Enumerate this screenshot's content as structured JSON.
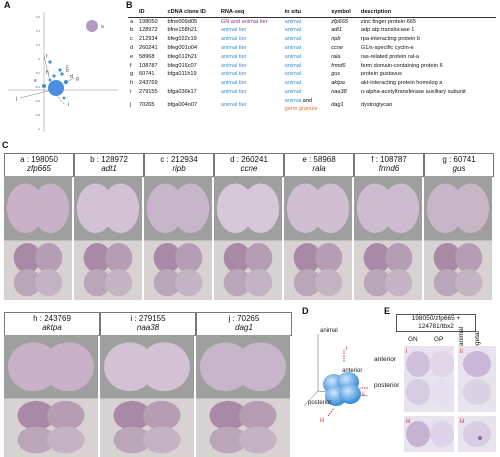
{
  "panels": {
    "A": "A",
    "B": "B",
    "C": "C",
    "D": "D",
    "E": "E"
  },
  "panelA": {
    "tick_labels_y": [
      "0.6",
      "0.4",
      "0.2",
      "0",
      "-0.2",
      "-0.4",
      "-0.6",
      "-0.8",
      "-1"
    ],
    "points": [
      "a",
      "b",
      "c",
      "d",
      "e",
      "f",
      "g",
      "h",
      "i",
      "j"
    ]
  },
  "table": {
    "headers": [
      "ID",
      "cDNA clone ID",
      "RNA-seq",
      "in situ",
      "symbol",
      "description"
    ],
    "rows": [
      {
        "key": "a",
        "id": "198050",
        "clone": "bfne009d05",
        "rnaseq": "GN and animal tier",
        "rnaseq_color": "purple",
        "insitu": "animal",
        "insitu2": "",
        "symbol": "zfp665",
        "desc": "zinc finger protein 665"
      },
      {
        "key": "b",
        "id": "128972",
        "clone": "bfne158h21",
        "rnaseq": "animal tier",
        "rnaseq_color": "blue",
        "insitu": "animal",
        "insitu2": "",
        "symbol": "adt1",
        "desc": "adp atp translocase 1"
      },
      {
        "key": "c",
        "id": "212934",
        "clone": "bfeg022c19",
        "rnaseq": "animal tier",
        "rnaseq_color": "blue",
        "insitu": "animal",
        "insitu2": "",
        "symbol": "ripb",
        "desc": "rpa-interacting protein b"
      },
      {
        "key": "d",
        "id": "260241",
        "clone": "bfeg001o04",
        "rnaseq": "animal tier",
        "rnaseq_color": "blue",
        "insitu": "animal",
        "insitu2": "",
        "symbol": "ccne",
        "desc": "G1/s-specific cyclin-e"
      },
      {
        "key": "e",
        "id": "58968",
        "clone": "bfeg012h21",
        "rnaseq": "animal tier",
        "rnaseq_color": "blue",
        "insitu": "animal",
        "insitu2": "",
        "symbol": "rala",
        "desc": "ras-related protein ral-a"
      },
      {
        "key": "f",
        "id": "108787",
        "clone": "bfeg016c07",
        "rnaseq": "animal tier",
        "rnaseq_color": "blue",
        "insitu": "animal",
        "insitu2": "",
        "symbol": "frmd6",
        "desc": "ferm domain-containing protein 6"
      },
      {
        "key": "g",
        "id": "60741",
        "clone": "bfga011h19",
        "rnaseq": "animal tier",
        "rnaseq_color": "blue",
        "insitu": "animal",
        "insitu2": "",
        "symbol": "gus",
        "desc": "protein gustavus"
      },
      {
        "key": "h",
        "id": "243769",
        "clone": "",
        "rnaseq": "animal tier",
        "rnaseq_color": "blue",
        "insitu": "animal",
        "insitu2": "",
        "symbol": "aktpa",
        "desc": "akt-interacting protein homolog a"
      },
      {
        "key": "i",
        "id": "279155",
        "clone": "bfga036k17",
        "rnaseq": "animal tier",
        "rnaseq_color": "blue",
        "insitu": "animal",
        "insitu2": "",
        "symbol": "naa38",
        "desc": "n-alpha-acetyltransferase auxiliary subunit"
      },
      {
        "key": "j",
        "id": "70265",
        "clone": "bfga004o07",
        "rnaseq": "animal tier",
        "rnaseq_color": "blue",
        "insitu": "animal",
        "insitu2": "germ granule",
        "symbol": "dag1",
        "desc": "dystroglycan"
      }
    ],
    "and_word": "and"
  },
  "panelC": {
    "row1": [
      {
        "label": "a : 198050",
        "sym": "zfp665"
      },
      {
        "label": "b : 128972",
        "sym": "adt1"
      },
      {
        "label": "c : 212934",
        "sym": "ripb"
      },
      {
        "label": "d : 260241",
        "sym": "ccne"
      },
      {
        "label": "e : 58968",
        "sym": "rala"
      },
      {
        "label": "f : 108787",
        "sym": "frmd6"
      },
      {
        "label": "g : 60741",
        "sym": "gus"
      }
    ],
    "row2": [
      {
        "label": "h : 243769",
        "sym": "aktpa"
      },
      {
        "label": "i : 279155",
        "sym": "naa38"
      },
      {
        "label": "j : 70265",
        "sym": "dag1"
      }
    ]
  },
  "panelD": {
    "animal": "animal",
    "anterior": "anterior",
    "posterior": "posterior",
    "i": "i",
    "ii": "ii",
    "iii": "iii"
  },
  "panelE": {
    "title_line1": "198050/zfp665 +",
    "title_line2": "124781/tbx2",
    "gn": "GN",
    "gp": "GP",
    "animal": "animal",
    "vegetal": "vegetal",
    "anterior": "anterior",
    "posterior": "posterior",
    "i": "i",
    "ii": "ii",
    "iii": "iii"
  },
  "colors": {
    "purple": "#8a3b8f",
    "blue": "#3e8fd8",
    "orange": "#e0762b",
    "red": "#d32f2f"
  }
}
